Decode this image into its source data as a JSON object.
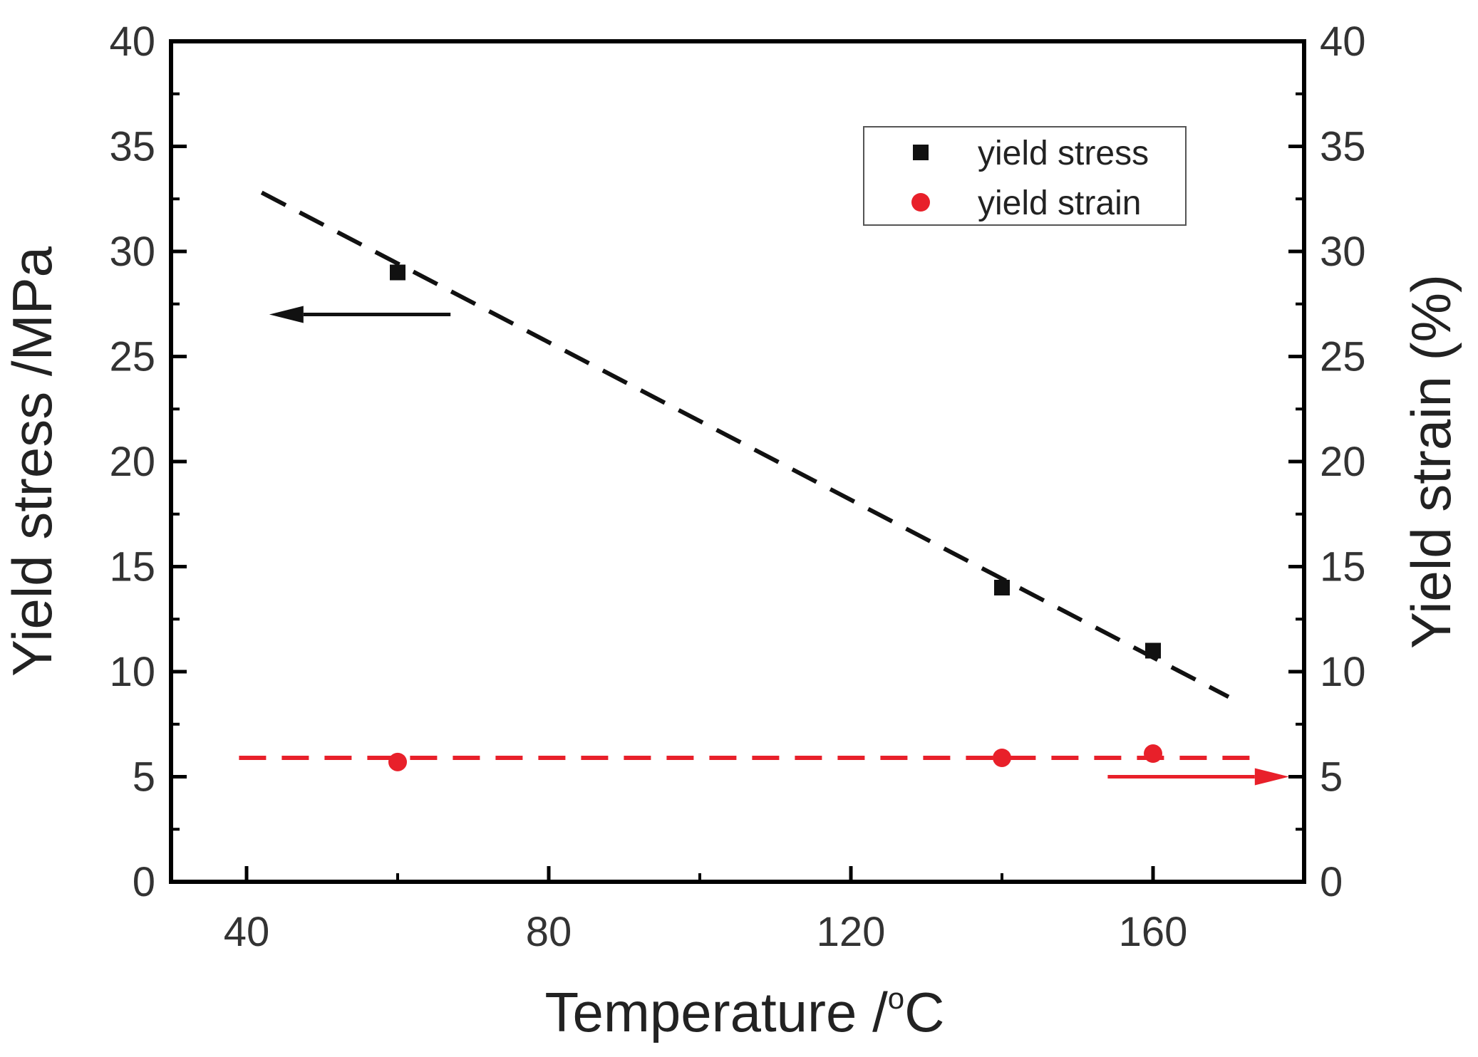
{
  "colors": {
    "stress": "#111111",
    "strain": "#e8202a",
    "axis": "#000000",
    "text": "#333333"
  },
  "chart_data": {
    "type": "scatter",
    "title": "",
    "xlabel": "Temperature /",
    "xlabel_degree": "o",
    "xlabel_unit": "C",
    "ylabel_left": "Yield stress /MPa",
    "ylabel_right": "Yield strain (%)",
    "xlim": [
      30,
      180
    ],
    "ylim_left": [
      0,
      40
    ],
    "ylim_right": [
      0,
      40
    ],
    "x_ticks": [
      40,
      80,
      120,
      160
    ],
    "x_tick_labels": [
      "40",
      "80",
      "120",
      "160"
    ],
    "x_minor_ticks": [
      60,
      100,
      140
    ],
    "y_ticks": [
      0,
      5,
      10,
      15,
      20,
      25,
      30,
      35,
      40
    ],
    "y_tick_labels": [
      "0",
      "5",
      "10",
      "15",
      "20",
      "25",
      "30",
      "35",
      "40"
    ],
    "legend_position": "top-right",
    "series": [
      {
        "name": "yield stress",
        "axis": "left",
        "marker": "square",
        "x": [
          60,
          140,
          160
        ],
        "y": [
          29,
          14,
          11
        ],
        "fit": {
          "style": "dashed",
          "x": [
            42,
            170
          ],
          "y": [
            32.8,
            8.8
          ]
        }
      },
      {
        "name": "yield strain",
        "axis": "right",
        "marker": "circle",
        "x": [
          60,
          140,
          160
        ],
        "y": [
          5.7,
          5.9,
          6.1
        ],
        "fit": {
          "style": "dashed",
          "x": [
            39,
            174
          ],
          "y": [
            5.9,
            5.9
          ]
        }
      }
    ],
    "annotations": [
      {
        "type": "arrow",
        "direction": "left",
        "points_to": "left-axis",
        "series": "yield stress",
        "x_from": 67,
        "x_to": 43,
        "y": 27
      },
      {
        "type": "arrow",
        "direction": "right",
        "points_to": "right-axis",
        "series": "yield strain",
        "x_from": 154,
        "x_to": 178,
        "y": 5
      }
    ]
  }
}
